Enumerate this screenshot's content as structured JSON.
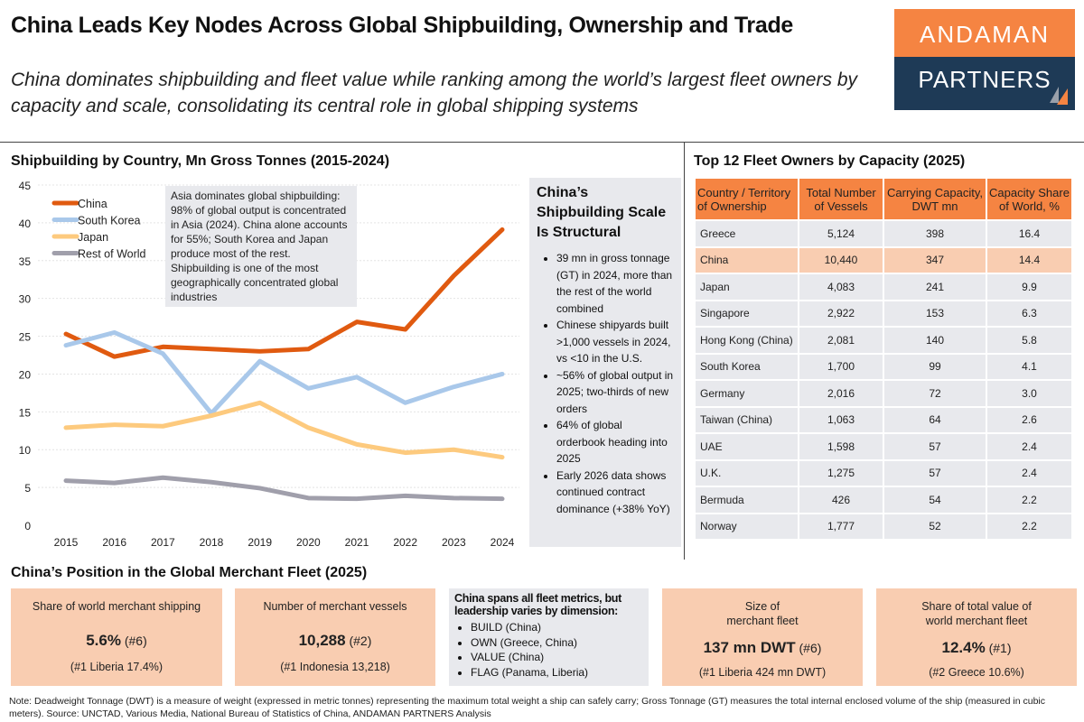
{
  "header": {
    "title": "China Leads Key Nodes Across Global Shipbuilding, Ownership and Trade",
    "subtitle": "China dominates shipbuilding and fleet value while ranking among the world’s largest fleet owners by capacity and scale, consolidating its central role in global shipping systems",
    "logo_top": "ANDAMAN",
    "logo_bottom": "PARTNERS"
  },
  "chart_data": {
    "type": "line",
    "title": "Shipbuilding by Country, Mn Gross Tonnes (2015-2024)",
    "x": [
      "2015",
      "2016",
      "2017",
      "2018",
      "2019",
      "2020",
      "2021",
      "2022",
      "2023",
      "2024"
    ],
    "ylim": [
      0,
      45
    ],
    "yticks": [
      "0",
      "5",
      "10",
      "15",
      "20",
      "25",
      "30",
      "35",
      "40",
      "45"
    ],
    "grid": true,
    "legend": "top-left",
    "series": [
      {
        "name": "China",
        "color": "#e05a10",
        "values": [
          25.3,
          22.3,
          23.6,
          23.3,
          23.0,
          23.3,
          26.9,
          25.9,
          33.0,
          39.1
        ]
      },
      {
        "name": "South Korea",
        "color": "#a9c8ea",
        "values": [
          23.8,
          25.5,
          22.7,
          14.8,
          21.7,
          18.1,
          19.6,
          16.2,
          18.3,
          20.0
        ]
      },
      {
        "name": "Japan",
        "color": "#fdca7e",
        "values": [
          12.9,
          13.3,
          13.1,
          14.5,
          16.2,
          12.9,
          10.7,
          9.6,
          10.0,
          9.0
        ]
      },
      {
        "name": "Rest of World",
        "color": "#a09fab",
        "values": [
          5.9,
          5.6,
          6.3,
          5.7,
          4.9,
          3.6,
          3.5,
          3.9,
          3.6,
          3.5
        ]
      }
    ],
    "annotation": "Asia dominates global shipbuilding: 98% of global output is concentrated in Asia (2024). China alone accounts for 55%; South Korea and Japan produce most of the rest. Shipbuilding is one of the most geographically concentrated global industries"
  },
  "side": {
    "title": "China’s Shipbuilding Scale Is Structural",
    "bullets": [
      "39 mn in gross tonnage (GT) in 2024, more than the rest of the world combined",
      "Chinese shipyards built >1,000 vessels in 2024, vs <10 in the U.S.",
      "~56% of global output in 2025; two-thirds of new orders",
      "64% of global orderbook heading into 2025",
      "Early 2026 data shows continued contract dominance (+38% YoY)"
    ]
  },
  "table": {
    "title": "Top 12 Fleet Owners by Capacity (2025)",
    "headers": [
      "Country / Territory of Ownership",
      "Total Number of Vessels",
      "Carrying Capacity, DWT mn",
      "Capacity Share of World, %"
    ],
    "rows": [
      [
        "Greece",
        "5,124",
        "398",
        "16.4"
      ],
      [
        "China",
        "10,440",
        "347",
        "14.4"
      ],
      [
        "Japan",
        "4,083",
        "241",
        "9.9"
      ],
      [
        "Singapore",
        "2,922",
        "153",
        "6.3"
      ],
      [
        "Hong Kong (China)",
        "2,081",
        "140",
        "5.8"
      ],
      [
        "South Korea",
        "1,700",
        "99",
        "4.1"
      ],
      [
        "Germany",
        "2,016",
        "72",
        "3.0"
      ],
      [
        "Taiwan (China)",
        "1,063",
        "64",
        "2.6"
      ],
      [
        "UAE",
        "1,598",
        "57",
        "2.4"
      ],
      [
        "U.K.",
        "1,275",
        "57",
        "2.4"
      ],
      [
        "Bermuda",
        "426",
        "54",
        "2.2"
      ],
      [
        "Norway",
        "1,777",
        "52",
        "2.2"
      ]
    ],
    "highlight_color": "#f9cdb1"
  },
  "fleet": {
    "title": "China’s Position in the Global Merchant Fleet (2025)",
    "boxes": [
      {
        "label": "Share of world merchant shipping",
        "value": "5.6%",
        "rank": "(#6)",
        "sub": "(#1 Liberia 17.4%)"
      },
      {
        "label": "Number of merchant vessels",
        "value": "10,288",
        "rank": "(#2)",
        "sub": "(#1 Indonesia 13,218)"
      },
      {
        "label": "Size of merchant fleet",
        "value": "137 mn DWT",
        "rank": "(#6)",
        "sub": "(#1 Liberia 424 mn DWT)"
      },
      {
        "label": "Share of total value of world merchant fleet",
        "value": "12.4%",
        "rank": "(#1)",
        "sub": "(#2 Greece 10.6%)"
      }
    ],
    "middle": {
      "heading": "China spans all fleet metrics, but leadership varies by dimension:",
      "items": [
        "BUILD (China)",
        "OWN (Greece, China)",
        "VALUE (China)",
        "FLAG (Panama, Liberia)"
      ]
    }
  },
  "note": "Note: Deadweight Tonnage (DWT) is a measure of weight (expressed in metric tonnes) representing the maximum total weight a ship can safely carry; Gross Tonnage (GT) measures the total internal enclosed volume of the ship (measured in cubic meters). Source: UNCTAD, Various Media, National Bureau of Statistics of China, ANDAMAN PARTNERS Analysis"
}
